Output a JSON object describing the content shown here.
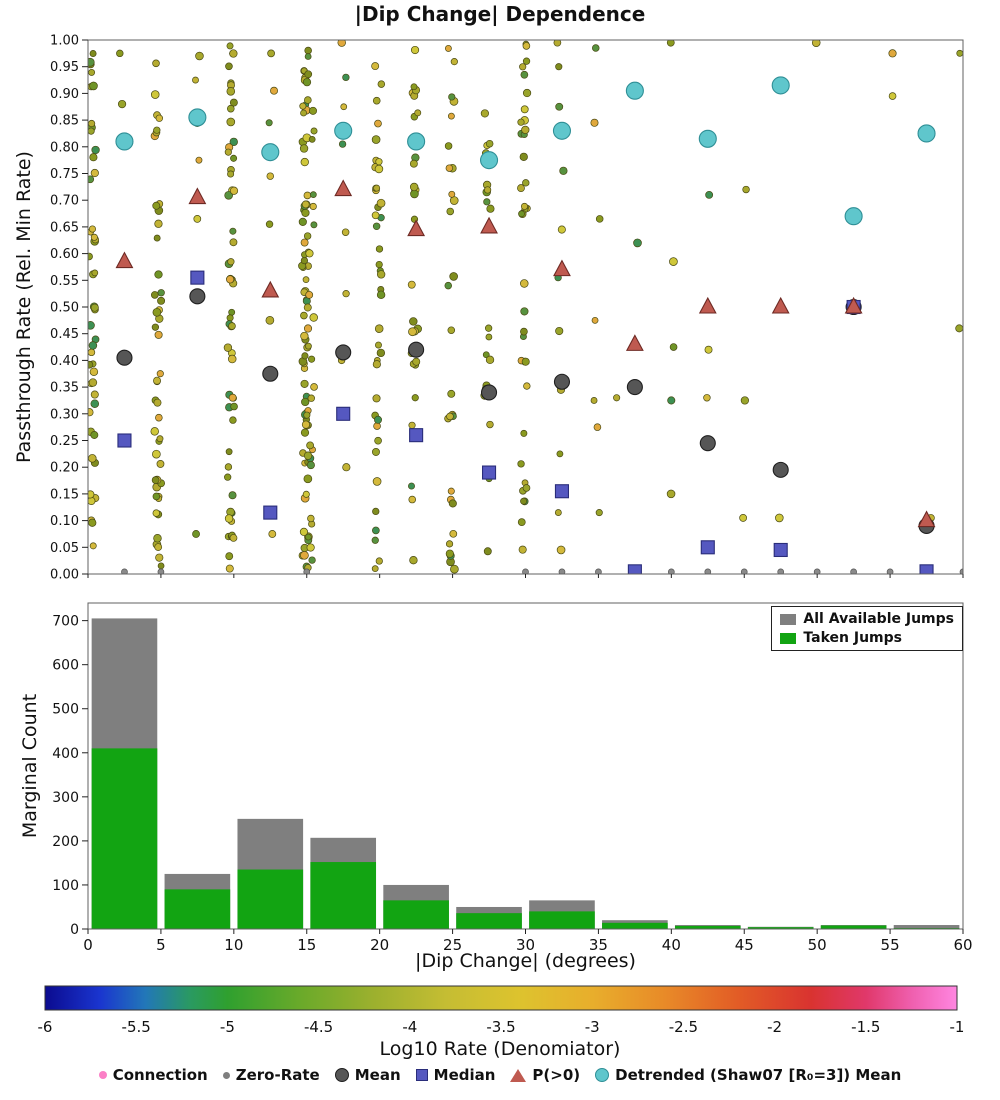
{
  "title": "|Dip Change| Dependence",
  "chart_data": [
    {
      "type": "scatter",
      "ylabel": "Passthrough Rate (Rel. Min Rate)",
      "xlim": [
        0,
        60
      ],
      "ylim": [
        0.0,
        1.0
      ],
      "yticks": [
        0.0,
        0.05,
        0.1,
        0.15,
        0.2,
        0.25,
        0.3,
        0.35,
        0.4,
        0.45,
        0.5,
        0.55,
        0.6,
        0.65,
        0.7,
        0.75,
        0.8,
        0.85,
        0.9,
        0.95,
        1.0
      ],
      "x_centers": [
        2.5,
        7.5,
        12.5,
        17.5,
        22.5,
        27.5,
        32.5,
        37.5,
        42.5,
        47.5,
        52.5,
        57.5
      ],
      "series": [
        {
          "name": "Mean",
          "marker": "circle",
          "color": "#565656",
          "edge": "#1f1f1f",
          "y": [
            0.405,
            0.52,
            0.375,
            0.415,
            0.42,
            0.34,
            0.36,
            0.35,
            0.245,
            0.195,
            0.5,
            0.09
          ]
        },
        {
          "name": "Median",
          "marker": "square",
          "color": "#5558c0",
          "edge": "#2a2d7a",
          "y": [
            0.25,
            0.555,
            0.115,
            0.3,
            0.26,
            0.19,
            0.155,
            0.005,
            0.05,
            0.045,
            0.5,
            0.005
          ]
        },
        {
          "name": "P(>0)",
          "marker": "triangle",
          "color": "#bf5a50",
          "edge": "#6e2a24",
          "y": [
            0.585,
            0.705,
            0.53,
            0.72,
            0.645,
            0.65,
            0.57,
            0.43,
            0.5,
            0.5,
            0.5,
            0.1
          ]
        },
        {
          "name": "Detrended (Shaw07 [R₀=3]) Mean",
          "marker": "circle",
          "color": "#5fc6cc",
          "edge": "#2f8f96",
          "y": [
            0.81,
            0.855,
            0.79,
            0.83,
            0.81,
            0.775,
            0.83,
            0.905,
            0.815,
            0.915,
            0.67,
            0.825
          ]
        }
      ],
      "zero_rate": {
        "name": "Zero-Rate",
        "color": "#8a8a8a",
        "x": [
          2.5,
          5.0,
          15.0,
          30.0,
          32.5,
          35.0,
          37.5,
          40.0,
          42.5,
          45.0,
          47.5,
          50.0,
          52.5,
          55.0,
          57.5,
          60.0
        ]
      },
      "background": {
        "palette": [
          "#8a9a20",
          "#a8a82c",
          "#c2b335",
          "#d4b93c",
          "#6f9426",
          "#57923f",
          "#3d9053",
          "#cfc73a",
          "#e0a83c",
          "#99a42a",
          "#7f8c1e",
          "#b5ab30"
        ],
        "edge": "#4a4a14",
        "columns": [
          {
            "x": 0.3,
            "n": 46
          },
          {
            "x": 2.3,
            "ys": [
              0.975,
              0.88
            ]
          },
          {
            "x": 4.8,
            "n": 46
          },
          {
            "x": 7.5,
            "ys": [
              0.97,
              0.925,
              0.845,
              0.775,
              0.665,
              0.075
            ]
          },
          {
            "x": 9.8,
            "n": 56
          },
          {
            "x": 12.6,
            "ys": [
              0.975,
              0.905,
              0.845,
              0.745,
              0.655,
              0.475,
              0.075
            ]
          },
          {
            "x": 14.9,
            "n": 70
          },
          {
            "x": 15.3,
            "n": 26
          },
          {
            "x": 17.5,
            "ys": [
              0.995,
              0.93,
              0.875,
              0.805,
              0.64,
              0.525,
              0.4,
              0.2
            ]
          },
          {
            "x": 19.9,
            "n": 40
          },
          {
            "x": 22.4,
            "n": 28
          },
          {
            "x": 24.9,
            "n": 28
          },
          {
            "x": 27.4,
            "n": 20
          },
          {
            "x": 29.9,
            "n": 38
          },
          {
            "x": 32.4,
            "ys": [
              0.995,
              0.95,
              0.875,
              0.755,
              0.645,
              0.555,
              0.455,
              0.345,
              0.225,
              0.115,
              0.045
            ]
          },
          {
            "x": 34.9,
            "ys": [
              0.985,
              0.845,
              0.665,
              0.475,
              0.325,
              0.275,
              0.115
            ]
          },
          {
            "x": 36.2,
            "ys": [
              0.33
            ]
          },
          {
            "x": 37.5,
            "ys": [
              0.62
            ]
          },
          {
            "x": 40.1,
            "ys": [
              0.995,
              0.585,
              0.425,
              0.325,
              0.15
            ]
          },
          {
            "x": 42.6,
            "ys": [
              0.71,
              0.42,
              0.33
            ]
          },
          {
            "x": 45.0,
            "ys": [
              0.72,
              0.325,
              0.105
            ]
          },
          {
            "x": 47.6,
            "ys": [
              0.105
            ]
          },
          {
            "x": 50.0,
            "ys": [
              0.995
            ]
          },
          {
            "x": 55.1,
            "ys": [
              0.975,
              0.895
            ]
          },
          {
            "x": 57.6,
            "ys": [
              0.105
            ]
          },
          {
            "x": 59.9,
            "ys": [
              0.975,
              0.46
            ]
          }
        ]
      }
    },
    {
      "type": "bar",
      "xlabel": "|Dip Change| (degrees)",
      "ylabel": "Marginal Count",
      "bin_edges": [
        0,
        5,
        10,
        15,
        20,
        25,
        30,
        35,
        40,
        45,
        50,
        55,
        60
      ],
      "series": [
        {
          "name": "All Available Jumps",
          "color": "#7f7f7f",
          "values": [
            705,
            125,
            250,
            207,
            100,
            50,
            65,
            20,
            9,
            5,
            9,
            9
          ]
        },
        {
          "name": "Taken Jumps",
          "color": "#12a412",
          "values": [
            410,
            90,
            135,
            152,
            65,
            36,
            40,
            14,
            7,
            4,
            8,
            2
          ]
        }
      ],
      "ylim": [
        0,
        740
      ],
      "yticks": [
        0,
        100,
        200,
        300,
        400,
        500,
        600,
        700
      ],
      "xticks": [
        0,
        5,
        10,
        15,
        20,
        25,
        30,
        35,
        40,
        45,
        50,
        55,
        60
      ],
      "legend_position": "upper right"
    },
    {
      "type": "colorbar",
      "label": "Log10 Rate (Denomiator)",
      "range": [
        -6,
        -1
      ],
      "tick_labels": [
        "-6",
        "-5.5",
        "-5",
        "-4.5",
        "-4",
        "-3.5",
        "-3",
        "-2.5",
        "-2",
        "-1.5",
        "-1"
      ],
      "gradient": [
        [
          "0",
          "#0b0b8f"
        ],
        [
          "0.06",
          "#1a35cf"
        ],
        [
          "0.11",
          "#2277b8"
        ],
        [
          "0.16",
          "#2a9a60"
        ],
        [
          "0.2",
          "#2fa02f"
        ],
        [
          "0.28",
          "#6aaa2a"
        ],
        [
          "0.36",
          "#9cb02e"
        ],
        [
          "0.44",
          "#c5bd33"
        ],
        [
          "0.52",
          "#ddc32e"
        ],
        [
          "0.6",
          "#e8ae2c"
        ],
        [
          "0.68",
          "#e88a28"
        ],
        [
          "0.76",
          "#e25c26"
        ],
        [
          "0.84",
          "#d93330"
        ],
        [
          "0.9",
          "#e0386a"
        ],
        [
          "0.95",
          "#ef5fae"
        ],
        [
          "1",
          "#ff86e1"
        ]
      ]
    }
  ],
  "legend": {
    "items": [
      {
        "label": "Connection",
        "marker": "dot",
        "color": "#fb7fc6"
      },
      {
        "label": "Zero-Rate",
        "marker": "dot-sm",
        "color": "#7f7f7f"
      },
      {
        "label": "Mean",
        "marker": "circle",
        "color": "#565656",
        "edge": "#1f1f1f"
      },
      {
        "label": "Median",
        "marker": "square",
        "color": "#5558c0",
        "edge": "#2a2d7a"
      },
      {
        "label": "P(>0)",
        "marker": "triangle",
        "color": "#bf5a50"
      },
      {
        "label": "Detrended (Shaw07 [R₀=3]) Mean",
        "marker": "circle",
        "color": "#5fc6cc",
        "edge": "#2f8f96"
      }
    ]
  }
}
